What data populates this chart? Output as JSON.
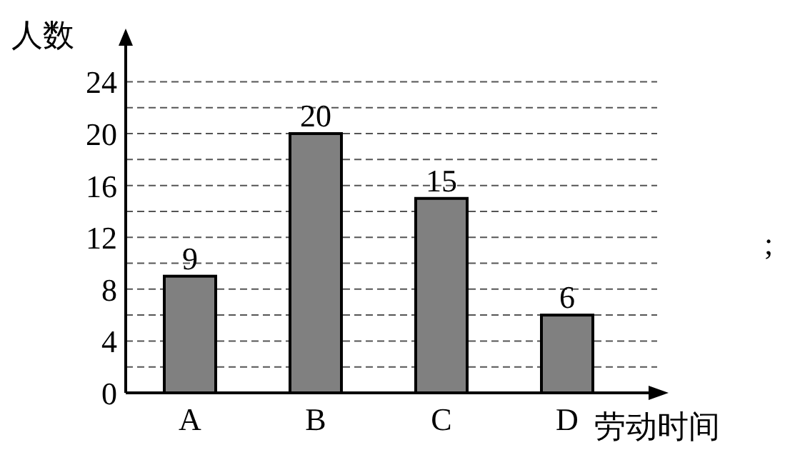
{
  "chart_data": {
    "type": "bar",
    "categories": [
      "A",
      "B",
      "C",
      "D"
    ],
    "values": [
      9,
      20,
      15,
      6
    ],
    "color": "#808080",
    "data_labels": true,
    "xlabel": "劳动时间",
    "ylabel": "人数",
    "ylim": [
      0,
      27
    ],
    "yticks": [
      0,
      {
        "value": 2,
        "label": null
      },
      4,
      {
        "value": 6,
        "label": null
      },
      8,
      {
        "value": 10,
        "label": null
      },
      12,
      {
        "value": 14,
        "label": null
      },
      16,
      {
        "value": 18,
        "label": null
      },
      20,
      {
        "value": 22,
        "label": null
      },
      24
    ],
    "grid": "y",
    "annotations": [
      ";"
    ]
  }
}
